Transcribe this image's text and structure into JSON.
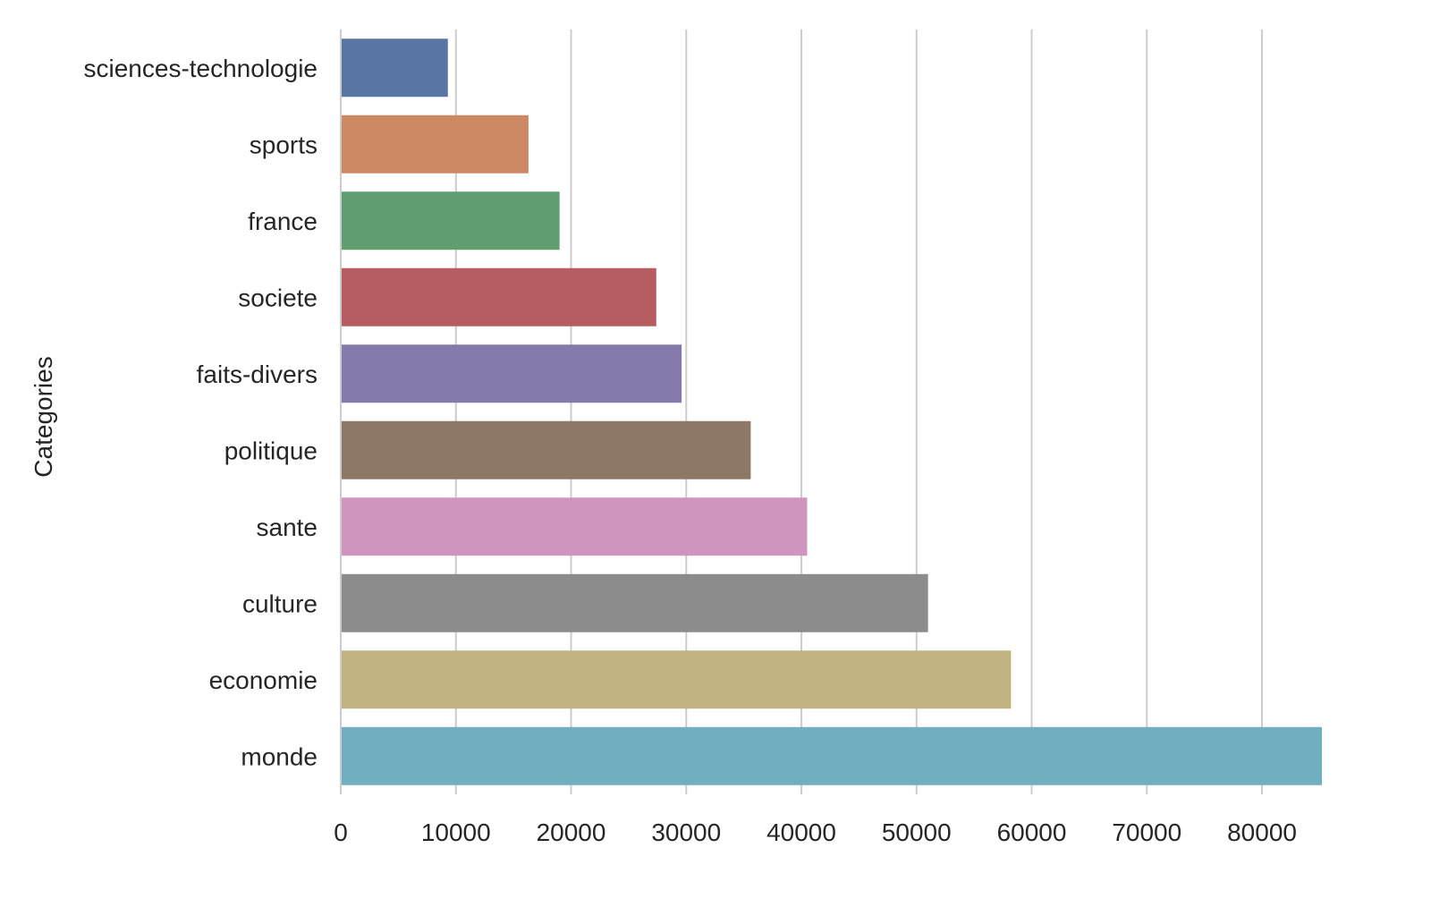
{
  "chart_data": {
    "type": "bar",
    "orientation": "horizontal",
    "categories": [
      "sciences-technologie",
      "sports",
      "france",
      "societe",
      "faits-divers",
      "politique",
      "sante",
      "culture",
      "economie",
      "monde"
    ],
    "values": [
      9300,
      16300,
      19000,
      27400,
      29600,
      35600,
      40500,
      51000,
      58200,
      85200
    ],
    "colors": [
      "#5875a4",
      "#cc8963",
      "#5f9e6e",
      "#b55d60",
      "#857aab",
      "#8d7866",
      "#d095bf",
      "#8c8c8c",
      "#c1b37f",
      "#71aec0"
    ],
    "title": "",
    "xlabel": "",
    "ylabel": "Categories",
    "xlim": [
      0,
      85200
    ],
    "xticks": [
      0,
      10000,
      20000,
      30000,
      40000,
      50000,
      60000,
      70000,
      80000
    ],
    "xtick_labels": [
      "0",
      "10000",
      "20000",
      "30000",
      "40000",
      "50000",
      "60000",
      "70000",
      "80000"
    ],
    "grid": "vertical",
    "legend": "none"
  }
}
